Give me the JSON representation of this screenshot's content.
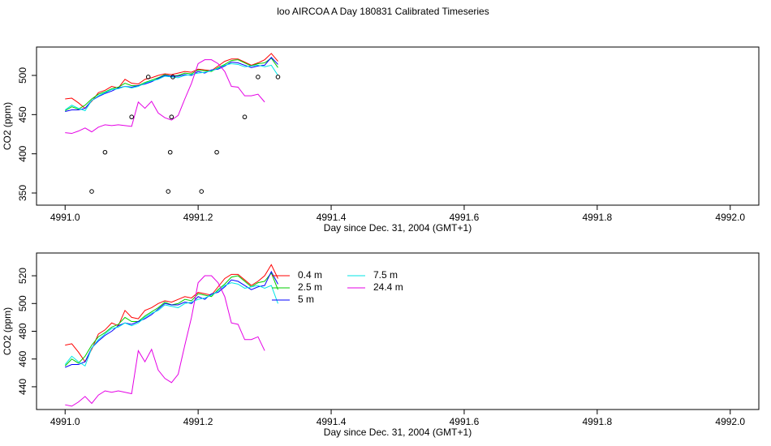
{
  "chart_data": [
    {
      "type": "line",
      "title": "loo AIRCOA A  Day 180831  Calibrated Timeseries",
      "x_label": "Day since Dec. 31, 2004 (GMT+1)",
      "y_label": "CO2 (ppm)",
      "xlim": [
        4990.957,
        4992.043
      ],
      "ylim": [
        334.5,
        536.2
      ],
      "xticks": [
        {
          "value": 4991.0,
          "label": "4991.0"
        },
        {
          "value": 4991.2,
          "label": "4991.2"
        },
        {
          "value": 4991.4,
          "label": "4991.4"
        },
        {
          "value": 4991.6,
          "label": "4991.6"
        },
        {
          "value": 4991.8,
          "label": "4991.8"
        },
        {
          "value": 4992.0,
          "label": "4992.0"
        }
      ],
      "yticks": [
        350,
        400,
        450,
        500
      ],
      "x": [
        4991.0,
        4991.01,
        4991.02,
        4991.03,
        4991.04,
        4991.05,
        4991.06,
        4991.07,
        4991.08,
        4991.09,
        4991.1,
        4991.11,
        4991.12,
        4991.13,
        4991.14,
        4991.15,
        4991.16,
        4991.17,
        4991.18,
        4991.19,
        4991.2,
        4991.21,
        4991.22,
        4991.23,
        4991.24,
        4991.25,
        4991.26,
        4991.27,
        4991.28,
        4991.29,
        4991.3,
        4991.31,
        4991.32
      ],
      "series": [
        {
          "color": "#ff0000",
          "values": [
            470,
            471,
            465,
            458,
            467,
            478,
            481,
            486,
            484,
            495,
            490,
            489,
            495,
            497,
            500,
            502,
            501,
            503,
            505,
            504,
            508,
            507,
            506,
            512,
            518,
            521,
            521,
            517,
            513,
            516,
            520,
            528,
            518
          ]
        },
        {
          "color": "#00cd00",
          "values": [
            455,
            460,
            457,
            462,
            470,
            476,
            479,
            483,
            485,
            490,
            487,
            487,
            491,
            494,
            497,
            501,
            499,
            500,
            503,
            502,
            507,
            506,
            505,
            510,
            514,
            519,
            520,
            516,
            512,
            515,
            516,
            522,
            510
          ]
        },
        {
          "color": "#0000ff",
          "values": [
            454,
            456,
            456,
            458,
            468,
            473,
            477,
            480,
            484,
            486,
            485,
            487,
            489,
            492,
            496,
            500,
            499,
            499,
            501,
            500,
            505,
            503,
            507,
            508,
            512,
            517,
            516,
            513,
            510,
            512,
            513,
            523,
            514
          ]
        },
        {
          "color": "#00e5e5",
          "values": [
            456,
            462,
            458,
            455,
            468,
            474,
            478,
            482,
            483,
            486,
            484,
            486,
            490,
            493,
            495,
            499,
            498,
            497,
            500,
            501,
            503,
            504,
            506,
            509,
            513,
            515,
            514,
            511,
            512,
            513,
            511,
            513,
            500
          ]
        },
        {
          "color": "#e500e5",
          "values": [
            427,
            426,
            429,
            433,
            428,
            434,
            437,
            436,
            437,
            436,
            435,
            466,
            458,
            467,
            452,
            446,
            443,
            449,
            470,
            490,
            515,
            520,
            520,
            515,
            505,
            486,
            485,
            474,
            474,
            476,
            466,
            null,
            null
          ]
        }
      ],
      "points": {
        "x": [
          4991.04,
          4991.06,
          4991.1,
          4991.125,
          4991.155,
          4991.158,
          4991.16,
          4991.162,
          4991.205,
          4991.228,
          4991.27,
          4991.29,
          4991.32
        ],
        "values": [
          352,
          402,
          447,
          498,
          352,
          402,
          447,
          498,
          352,
          402,
          447,
          498,
          498
        ]
      }
    },
    {
      "type": "line",
      "x_label": "Day since Dec. 31, 2004 (GMT+1)",
      "y_label": "CO2 (ppm)",
      "xlim": [
        4990.957,
        4992.043
      ],
      "ylim": [
        423.6,
        536.4
      ],
      "xticks": [
        {
          "value": 4991.0,
          "label": "4991.0"
        },
        {
          "value": 4991.2,
          "label": "4991.2"
        },
        {
          "value": 4991.4,
          "label": "4991.4"
        },
        {
          "value": 4991.6,
          "label": "4991.6"
        },
        {
          "value": 4991.8,
          "label": "4991.8"
        },
        {
          "value": 4992.0,
          "label": "4992.0"
        }
      ],
      "yticks": [
        440,
        460,
        480,
        500,
        520
      ],
      "x": [
        4991.0,
        4991.01,
        4991.02,
        4991.03,
        4991.04,
        4991.05,
        4991.06,
        4991.07,
        4991.08,
        4991.09,
        4991.1,
        4991.11,
        4991.12,
        4991.13,
        4991.14,
        4991.15,
        4991.16,
        4991.17,
        4991.18,
        4991.19,
        4991.2,
        4991.21,
        4991.22,
        4991.23,
        4991.24,
        4991.25,
        4991.26,
        4991.27,
        4991.28,
        4991.29,
        4991.3,
        4991.31,
        4991.32
      ],
      "series": [
        {
          "name": "0.4 m",
          "color": "#ff0000",
          "values": [
            470,
            471,
            465,
            458,
            467,
            478,
            481,
            486,
            484,
            495,
            490,
            489,
            495,
            497,
            500,
            502,
            501,
            503,
            505,
            504,
            508,
            507,
            506,
            512,
            518,
            521,
            521,
            517,
            513,
            516,
            520,
            528,
            518
          ]
        },
        {
          "name": "2.5 m",
          "color": "#00cd00",
          "values": [
            455,
            460,
            457,
            462,
            470,
            476,
            479,
            483,
            485,
            490,
            487,
            487,
            491,
            494,
            497,
            501,
            499,
            500,
            503,
            502,
            507,
            506,
            505,
            510,
            514,
            519,
            520,
            516,
            512,
            515,
            516,
            522,
            510
          ]
        },
        {
          "name": "5 m",
          "color": "#0000ff",
          "values": [
            454,
            456,
            456,
            458,
            468,
            473,
            477,
            480,
            484,
            486,
            485,
            487,
            489,
            492,
            496,
            500,
            499,
            499,
            501,
            500,
            505,
            503,
            507,
            508,
            512,
            517,
            516,
            513,
            510,
            512,
            513,
            523,
            514
          ]
        },
        {
          "name": "7.5 m",
          "color": "#00e5e5",
          "values": [
            456,
            462,
            458,
            455,
            468,
            474,
            478,
            482,
            483,
            486,
            484,
            486,
            490,
            493,
            495,
            499,
            498,
            497,
            500,
            501,
            503,
            504,
            506,
            509,
            513,
            515,
            514,
            511,
            512,
            513,
            511,
            513,
            500
          ]
        },
        {
          "name": "24.4 m",
          "color": "#e500e5",
          "values": [
            427,
            426,
            429,
            433,
            428,
            434,
            437,
            436,
            437,
            436,
            435,
            466,
            458,
            467,
            452,
            446,
            443,
            449,
            470,
            490,
            515,
            520,
            520,
            515,
            505,
            486,
            485,
            474,
            474,
            476,
            466,
            null,
            null
          ]
        }
      ]
    }
  ]
}
